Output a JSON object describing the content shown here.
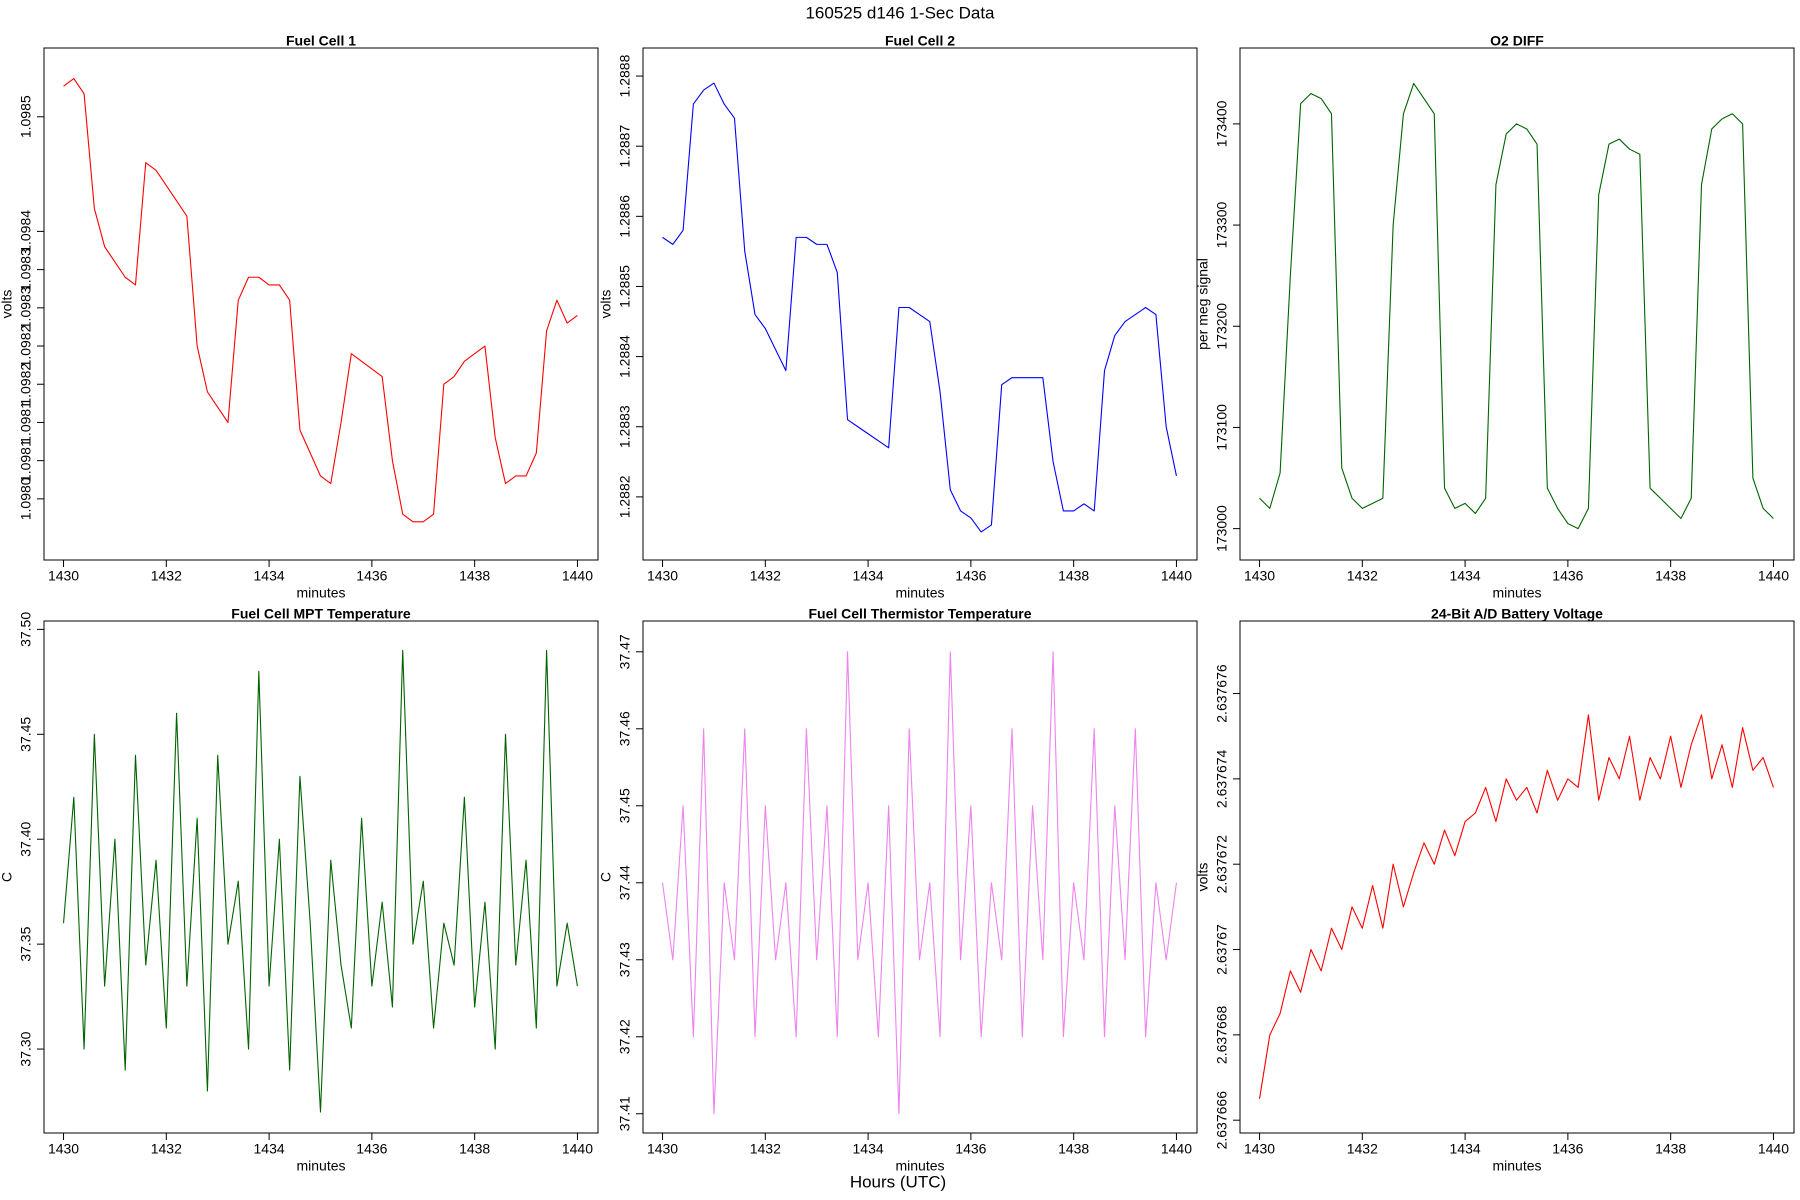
{
  "title": "160525   d146   1-Sec Data",
  "x_axis_label": "Hours (UTC)",
  "chart_data": [
    {
      "type": "line",
      "title": "Fuel Cell 1",
      "x_label": "minutes",
      "y_label": "volts",
      "color": "#ff0000",
      "x": [
        1430,
        1430.2,
        1430.4,
        1430.6,
        1430.8,
        1431,
        1431.2,
        1431.4,
        1431.6,
        1431.8,
        1432,
        1432.2,
        1432.4,
        1432.6,
        1432.8,
        1433,
        1433.2,
        1433.4,
        1433.6,
        1433.8,
        1434,
        1434.2,
        1434.4,
        1434.6,
        1434.8,
        1435,
        1435.2,
        1435.4,
        1435.6,
        1435.8,
        1436,
        1436.2,
        1436.4,
        1436.6,
        1436.8,
        1437,
        1437.2,
        1437.4,
        1437.6,
        1437.8,
        1438,
        1438.2,
        1438.4,
        1438.6,
        1438.8,
        1439,
        1439.2,
        1439.4,
        1439.6,
        1439.8,
        1440
      ],
      "values": [
        1.09854,
        1.09855,
        1.09853,
        1.09838,
        1.09833,
        1.09831,
        1.09829,
        1.09828,
        1.09844,
        1.09843,
        1.09841,
        1.09839,
        1.09837,
        1.0982,
        1.09814,
        1.09812,
        1.0981,
        1.09826,
        1.09829,
        1.09829,
        1.09828,
        1.09828,
        1.09826,
        1.09809,
        1.09806,
        1.09803,
        1.09802,
        1.0981,
        1.09819,
        1.09818,
        1.09817,
        1.09816,
        1.09805,
        1.09798,
        1.09797,
        1.09797,
        1.09798,
        1.09815,
        1.09816,
        1.09818,
        1.09819,
        1.0982,
        1.09808,
        1.09802,
        1.09803,
        1.09803,
        1.09806,
        1.09822,
        1.09826,
        1.09823,
        1.09824
      ],
      "xlim": [
        1429.62,
        1440.4
      ],
      "xticks": [
        1430,
        1432,
        1434,
        1436,
        1438,
        1440
      ],
      "ylim": [
        1.09792,
        1.09859
      ],
      "yticks": [
        {
          "value": 1.098,
          "label": "1.0980"
        },
        {
          "value": 1.09805,
          "label": "1.0981"
        },
        {
          "value": 1.0981,
          "label": "1.0981"
        },
        {
          "value": 1.09815,
          "label": "1.0982"
        },
        {
          "value": 1.0982,
          "label": "1.0982"
        },
        {
          "value": 1.09825,
          "label": "1.0983"
        },
        {
          "value": 1.0983,
          "label": "1.0983"
        },
        {
          "value": 1.09835,
          "label": "1.0984"
        },
        {
          "value": 1.0985,
          "label": "1.0985"
        }
      ]
    },
    {
      "type": "line",
      "title": "Fuel Cell 2",
      "x_label": "minutes",
      "y_label": "volts",
      "color": "#0000ff",
      "x": [
        1430,
        1430.2,
        1430.4,
        1430.6,
        1430.8,
        1431,
        1431.2,
        1431.4,
        1431.6,
        1431.8,
        1432,
        1432.2,
        1432.4,
        1432.6,
        1432.8,
        1433,
        1433.2,
        1433.4,
        1433.6,
        1433.8,
        1434,
        1434.2,
        1434.4,
        1434.6,
        1434.8,
        1435,
        1435.2,
        1435.4,
        1435.6,
        1435.8,
        1436,
        1436.2,
        1436.4,
        1436.6,
        1436.8,
        1437,
        1437.2,
        1437.4,
        1437.6,
        1437.8,
        1438,
        1438.2,
        1438.4,
        1438.6,
        1438.8,
        1439,
        1439.2,
        1439.4,
        1439.6,
        1439.8,
        1440
      ],
      "values": [
        1.28857,
        1.28856,
        1.28858,
        1.28876,
        1.28878,
        1.28879,
        1.28876,
        1.28874,
        1.28855,
        1.28846,
        1.28844,
        1.28841,
        1.28838,
        1.28857,
        1.28857,
        1.28856,
        1.28856,
        1.28852,
        1.28831,
        1.2883,
        1.28829,
        1.28828,
        1.28827,
        1.28847,
        1.28847,
        1.28846,
        1.28845,
        1.28835,
        1.28821,
        1.28818,
        1.28817,
        1.28815,
        1.28816,
        1.28836,
        1.28837,
        1.28837,
        1.28837,
        1.28837,
        1.28825,
        1.28818,
        1.28818,
        1.28819,
        1.28818,
        1.28838,
        1.28843,
        1.28845,
        1.28846,
        1.28847,
        1.28846,
        1.2883,
        1.28823
      ],
      "xlim": [
        1429.62,
        1440.4
      ],
      "xticks": [
        1430,
        1432,
        1434,
        1436,
        1438,
        1440
      ],
      "ylim": [
        1.28811,
        1.28884
      ],
      "yticks": [
        1.2882,
        1.2883,
        1.2884,
        1.2885,
        1.2886,
        1.2887,
        1.2888
      ]
    },
    {
      "type": "line",
      "title": "O2 DIFF",
      "x_label": "minutes",
      "y_label": "per meg signal",
      "color": "#006400",
      "x": [
        1430,
        1430.2,
        1430.4,
        1430.6,
        1430.8,
        1431,
        1431.2,
        1431.4,
        1431.6,
        1431.8,
        1432,
        1432.2,
        1432.4,
        1432.6,
        1432.8,
        1433,
        1433.2,
        1433.4,
        1433.6,
        1433.8,
        1434,
        1434.2,
        1434.4,
        1434.6,
        1434.8,
        1435,
        1435.2,
        1435.4,
        1435.6,
        1435.8,
        1436,
        1436.2,
        1436.4,
        1436.6,
        1436.8,
        1437,
        1437.2,
        1437.4,
        1437.6,
        1437.8,
        1438,
        1438.2,
        1438.4,
        1438.6,
        1438.8,
        1439,
        1439.2,
        1439.4,
        1439.6,
        1439.8,
        1440
      ],
      "values": [
        173030,
        173020,
        173055,
        173250,
        173420,
        173430,
        173425,
        173410,
        173060,
        173030,
        173020,
        173025,
        173030,
        173300,
        173410,
        173440,
        173425,
        173410,
        173040,
        173020,
        173025,
        173015,
        173030,
        173340,
        173390,
        173400,
        173395,
        173380,
        173040,
        173020,
        173005,
        173000,
        173020,
        173330,
        173380,
        173385,
        173375,
        173370,
        173040,
        173030,
        173020,
        173010,
        173030,
        173340,
        173395,
        173405,
        173410,
        173400,
        173050,
        173020,
        173010
      ],
      "xlim": [
        1429.62,
        1440.4
      ],
      "xticks": [
        1430,
        1432,
        1434,
        1436,
        1438,
        1440
      ],
      "ylim": [
        172969,
        173475
      ],
      "yticks": [
        173000,
        173100,
        173200,
        173300,
        173400
      ]
    },
    {
      "type": "line",
      "title": "Fuel Cell MPT Temperature",
      "x_label": "minutes",
      "y_label": "C",
      "color": "#006400",
      "x": [
        1430,
        1430.2,
        1430.4,
        1430.6,
        1430.8,
        1431,
        1431.2,
        1431.4,
        1431.6,
        1431.8,
        1432,
        1432.2,
        1432.4,
        1432.6,
        1432.8,
        1433,
        1433.2,
        1433.4,
        1433.6,
        1433.8,
        1434,
        1434.2,
        1434.4,
        1434.6,
        1434.8,
        1435,
        1435.2,
        1435.4,
        1435.6,
        1435.8,
        1436,
        1436.2,
        1436.4,
        1436.6,
        1436.8,
        1437,
        1437.2,
        1437.4,
        1437.6,
        1437.8,
        1438,
        1438.2,
        1438.4,
        1438.6,
        1438.8,
        1439,
        1439.2,
        1439.4,
        1439.6,
        1439.8,
        1440
      ],
      "values": [
        37.36,
        37.42,
        37.3,
        37.45,
        37.33,
        37.4,
        37.29,
        37.44,
        37.34,
        37.39,
        37.31,
        37.46,
        37.33,
        37.41,
        37.28,
        37.44,
        37.35,
        37.38,
        37.3,
        37.48,
        37.33,
        37.4,
        37.29,
        37.43,
        37.36,
        37.27,
        37.39,
        37.34,
        37.31,
        37.41,
        37.33,
        37.37,
        37.32,
        37.49,
        37.35,
        37.38,
        37.31,
        37.36,
        37.34,
        37.42,
        37.32,
        37.37,
        37.3,
        37.45,
        37.34,
        37.39,
        37.31,
        37.49,
        37.33,
        37.36,
        37.33
      ],
      "xlim": [
        1429.62,
        1440.4
      ],
      "xticks": [
        1430,
        1432,
        1434,
        1436,
        1438,
        1440
      ],
      "ylim": [
        37.26,
        37.504
      ],
      "yticks": [
        {
          "value": 37.3,
          "label": "37.30"
        },
        37.35,
        {
          "value": 37.4,
          "label": "37.40"
        },
        37.45,
        {
          "value": 37.5,
          "label": "37.50"
        }
      ]
    },
    {
      "type": "line",
      "title": "Fuel Cell Thermistor Temperature",
      "x_label": "minutes",
      "y_label": "C",
      "color": "#ee82ee",
      "x": [
        1430,
        1430.2,
        1430.4,
        1430.6,
        1430.8,
        1431,
        1431.2,
        1431.4,
        1431.6,
        1431.8,
        1432,
        1432.2,
        1432.4,
        1432.6,
        1432.8,
        1433,
        1433.2,
        1433.4,
        1433.6,
        1433.8,
        1434,
        1434.2,
        1434.4,
        1434.6,
        1434.8,
        1435,
        1435.2,
        1435.4,
        1435.6,
        1435.8,
        1436,
        1436.2,
        1436.4,
        1436.6,
        1436.8,
        1437,
        1437.2,
        1437.4,
        1437.6,
        1437.8,
        1438,
        1438.2,
        1438.4,
        1438.6,
        1438.8,
        1439,
        1439.2,
        1439.4,
        1439.6,
        1439.8,
        1440
      ],
      "values": [
        37.44,
        37.43,
        37.45,
        37.42,
        37.46,
        37.41,
        37.44,
        37.43,
        37.46,
        37.42,
        37.45,
        37.43,
        37.44,
        37.42,
        37.46,
        37.43,
        37.45,
        37.42,
        37.47,
        37.43,
        37.44,
        37.42,
        37.45,
        37.41,
        37.46,
        37.43,
        37.44,
        37.42,
        37.47,
        37.43,
        37.45,
        37.42,
        37.44,
        37.43,
        37.46,
        37.42,
        37.45,
        37.43,
        37.47,
        37.42,
        37.44,
        37.43,
        37.46,
        37.42,
        37.45,
        37.43,
        37.46,
        37.42,
        37.44,
        37.43,
        37.44
      ],
      "xlim": [
        1429.62,
        1440.4
      ],
      "xticks": [
        1430,
        1432,
        1434,
        1436,
        1438,
        1440
      ],
      "ylim": [
        37.4075,
        37.474
      ],
      "yticks": [
        37.41,
        37.42,
        37.43,
        37.44,
        37.45,
        37.46,
        37.47
      ]
    },
    {
      "type": "line",
      "title": "24-Bit A/D Battery Voltage",
      "x_label": "minutes",
      "y_label": "volts",
      "color": "#ff0000",
      "x": [
        1430,
        1430.2,
        1430.4,
        1430.6,
        1430.8,
        1431,
        1431.2,
        1431.4,
        1431.6,
        1431.8,
        1432,
        1432.2,
        1432.4,
        1432.6,
        1432.8,
        1433,
        1433.2,
        1433.4,
        1433.6,
        1433.8,
        1434,
        1434.2,
        1434.4,
        1434.6,
        1434.8,
        1435,
        1435.2,
        1435.4,
        1435.6,
        1435.8,
        1436,
        1436.2,
        1436.4,
        1436.6,
        1436.8,
        1437,
        1437.2,
        1437.4,
        1437.6,
        1437.8,
        1438,
        1438.2,
        1438.4,
        1438.6,
        1438.8,
        1439,
        1439.2,
        1439.4,
        1439.6,
        1439.8,
        1440
      ],
      "values": [
        2.6376665,
        2.637668,
        2.6376685,
        2.6376695,
        2.637669,
        2.63767,
        2.6376695,
        2.6376705,
        2.63767,
        2.637671,
        2.6376705,
        2.6376715,
        2.6376705,
        2.637672,
        2.637671,
        2.6376718,
        2.6376725,
        2.637672,
        2.6376728,
        2.6376722,
        2.637673,
        2.6376732,
        2.6376738,
        2.637673,
        2.637674,
        2.6376735,
        2.6376738,
        2.6376732,
        2.6376742,
        2.6376735,
        2.637674,
        2.6376738,
        2.6376755,
        2.6376735,
        2.6376745,
        2.637674,
        2.637675,
        2.6376735,
        2.6376745,
        2.637674,
        2.637675,
        2.6376738,
        2.6376748,
        2.6376755,
        2.637674,
        2.6376748,
        2.6376738,
        2.6376752,
        2.6376742,
        2.6376745,
        2.6376738
      ],
      "xlim": [
        1429.62,
        1440.4
      ],
      "xticks": [
        1430,
        1432,
        1434,
        1436,
        1438,
        1440
      ],
      "ylim": [
        2.6376657,
        2.6376777
      ],
      "yticks": [
        2.637666,
        2.637668,
        2.63767,
        2.637672,
        2.637674,
        2.637676
      ]
    }
  ]
}
